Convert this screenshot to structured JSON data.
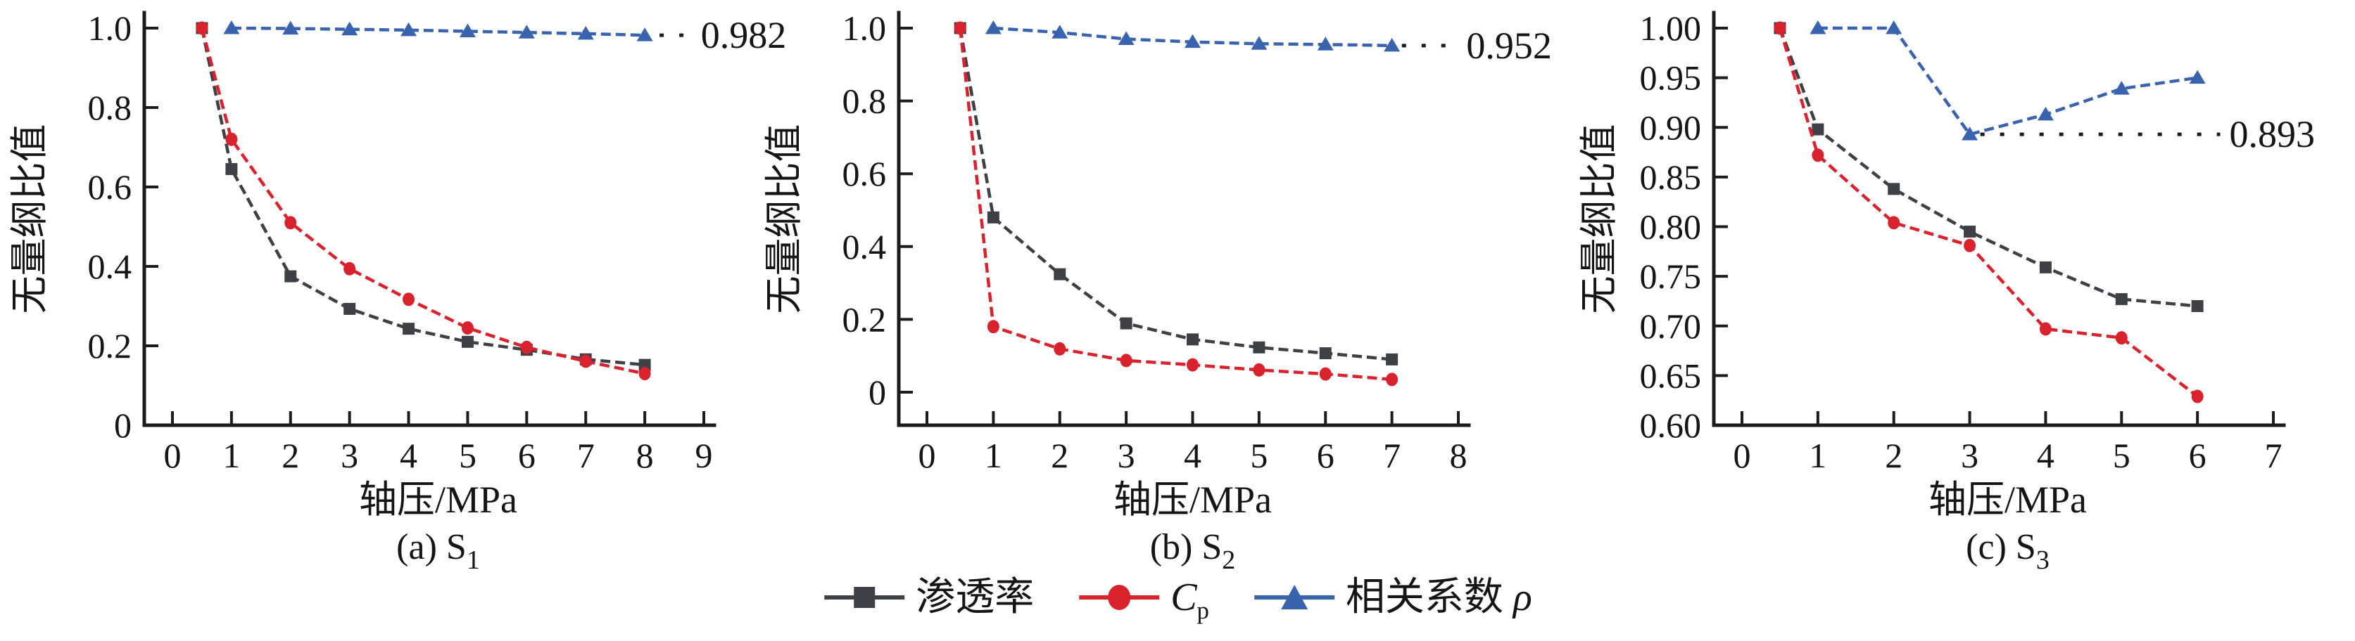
{
  "figure_title": "",
  "axis_labels": {
    "x": "轴压/MPa",
    "y": "无量纲比值"
  },
  "colors": {
    "permeability": "#3f4045",
    "cp": "#d8232f",
    "rho": "#3a63ae",
    "axis": "#1c1c1c",
    "text": "#151515"
  },
  "legend": {
    "items": [
      {
        "label": "渗透率",
        "marker": "square",
        "color": "#3f4045"
      },
      {
        "label_main": "C",
        "label_sub": "p",
        "marker": "circle",
        "color": "#d8232f"
      },
      {
        "label_prefix": "相关系数 ",
        "label_italic": "ρ",
        "marker": "triangle",
        "color": "#3a63ae"
      }
    ]
  },
  "chart_data": [
    {
      "type": "line",
      "caption": {
        "text": "(a) S",
        "sub": "1"
      },
      "xlabel": "轴压/MPa",
      "ylabel": "无量纲比值",
      "xlim": [
        0,
        9
      ],
      "xticks": [
        0,
        1,
        2,
        3,
        4,
        5,
        6,
        7,
        8,
        9
      ],
      "ylim": [
        0,
        1.0
      ],
      "yticks": [
        0,
        0.2,
        0.4,
        0.6,
        0.8,
        1.0
      ],
      "ytick_labels": [
        "0",
        "0.2",
        "0.4",
        "0.6",
        "0.8",
        "1.0"
      ],
      "grid": false,
      "annotation": {
        "text": "0.982",
        "value": 0.982,
        "line_x": [
          8.25,
          8.85
        ],
        "text_x": 8.95
      },
      "series": [
        {
          "name": "渗透率",
          "marker": "square",
          "color": "#3f4045",
          "x": [
            0.5,
            1,
            2,
            3,
            4,
            5,
            6,
            7,
            8
          ],
          "y": [
            1.0,
            0.645,
            0.375,
            0.293,
            0.243,
            0.21,
            0.19,
            0.166,
            0.152
          ]
        },
        {
          "name": "Cp",
          "marker": "circle",
          "color": "#d8232f",
          "x": [
            0.5,
            1,
            2,
            3,
            4,
            5,
            6,
            7,
            8
          ],
          "y": [
            1.0,
            0.72,
            0.51,
            0.394,
            0.317,
            0.245,
            0.196,
            0.161,
            0.13
          ]
        },
        {
          "name": "相关系数 ρ",
          "marker": "triangle",
          "color": "#3a63ae",
          "x": [
            1,
            2,
            3,
            4,
            5,
            6,
            7,
            8
          ],
          "y": [
            1.0,
            0.999,
            0.997,
            0.995,
            0.992,
            0.989,
            0.986,
            0.982
          ]
        }
      ]
    },
    {
      "type": "line",
      "caption": {
        "text": "(b) S",
        "sub": "2"
      },
      "xlabel": "轴压/MPa",
      "ylabel": "无量纲比值",
      "xlim": [
        0,
        8
      ],
      "xticks": [
        0,
        1,
        2,
        3,
        4,
        5,
        6,
        7,
        8
      ],
      "ylim": [
        0,
        1.0
      ],
      "yticks": [
        0,
        0.2,
        0.4,
        0.6,
        0.8,
        1.0
      ],
      "ytick_labels": [
        "0",
        "0.2",
        "0.4",
        "0.6",
        "0.8",
        "1.0"
      ],
      "grid": false,
      "annotation": {
        "text": "0.952",
        "value": 0.952,
        "line_x": [
          7.15,
          8.0
        ],
        "text_x": 8.12
      },
      "series": [
        {
          "name": "渗透率",
          "marker": "square",
          "color": "#3f4045",
          "x": [
            0.5,
            1,
            2,
            3,
            4,
            5,
            6,
            7
          ],
          "y": [
            1.0,
            0.48,
            0.324,
            0.189,
            0.145,
            0.123,
            0.107,
            0.09
          ]
        },
        {
          "name": "Cp",
          "marker": "circle",
          "color": "#d8232f",
          "x": [
            0.5,
            1,
            2,
            3,
            4,
            5,
            6,
            7
          ],
          "y": [
            1.0,
            0.18,
            0.119,
            0.087,
            0.075,
            0.061,
            0.05,
            0.035
          ]
        },
        {
          "name": "相关系数 ρ",
          "marker": "triangle",
          "color": "#3a63ae",
          "x": [
            1,
            2,
            3,
            4,
            5,
            6,
            7
          ],
          "y": [
            1.0,
            0.988,
            0.97,
            0.962,
            0.957,
            0.955,
            0.952
          ]
        }
      ]
    },
    {
      "type": "line",
      "caption": {
        "text": "(c) S",
        "sub": "3"
      },
      "xlabel": "轴压/MPa",
      "ylabel": "无量纲比值",
      "xlim": [
        0,
        7
      ],
      "xticks": [
        0,
        1,
        2,
        3,
        4,
        5,
        6,
        7
      ],
      "ylim": [
        0.6,
        1.0
      ],
      "yticks": [
        0.6,
        0.65,
        0.7,
        0.75,
        0.8,
        0.85,
        0.9,
        0.95,
        1.0
      ],
      "ytick_labels": [
        "0.60",
        "0.65",
        "0.70",
        "0.75",
        "0.80",
        "0.85",
        "0.90",
        "0.95",
        "1.00"
      ],
      "grid": false,
      "annotation": {
        "text": "0.893",
        "value": 0.893,
        "line_x": [
          3.14,
          6.3
        ],
        "text_x": 6.42
      },
      "series": [
        {
          "name": "渗透率",
          "marker": "square",
          "color": "#3f4045",
          "x": [
            0.5,
            1,
            2,
            3,
            4,
            5,
            6
          ],
          "y": [
            1.0,
            0.898,
            0.838,
            0.795,
            0.759,
            0.727,
            0.72
          ]
        },
        {
          "name": "Cp",
          "marker": "circle",
          "color": "#d8232f",
          "x": [
            0.5,
            1,
            2,
            3,
            4,
            5,
            6
          ],
          "y": [
            1.0,
            0.872,
            0.804,
            0.781,
            0.697,
            0.688,
            0.629
          ]
        },
        {
          "name": "相关系数 ρ",
          "marker": "triangle",
          "color": "#3a63ae",
          "x": [
            1,
            2,
            3,
            4,
            5,
            6
          ],
          "y": [
            1.0,
            1.0,
            0.893,
            0.913,
            0.939,
            0.95
          ]
        }
      ]
    }
  ]
}
